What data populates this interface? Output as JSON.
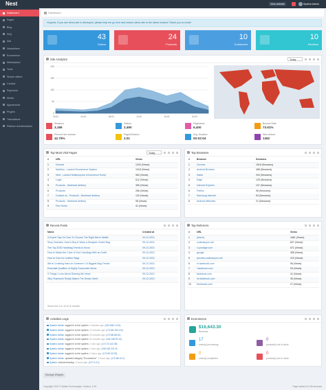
{
  "header": {
    "logo": "Nest",
    "view_website": "View website",
    "user": "System Admin"
  },
  "sidebar": {
    "items": [
      "Dashboard",
      "Pages",
      "Blog",
      "FAQ",
      "Ads",
      "Newsletters",
      "Ecommerce",
      "Marketplace",
      "Tools",
      "Simple sliders",
      "Contact",
      "Payments",
      "Media",
      "Appearance",
      "Plugins",
      "Translations",
      "Platform Administration"
    ],
    "active": 0,
    "color": "#2f3a48",
    "active_color": "#e7505a"
  },
  "breadcrumb": "Dashboard",
  "alert": {
    "text_before": "Hi guest, If you see demo site is destroyed, please help me ",
    "link": "go here",
    "text_after": " and restore demo site to the latest revision! Thank you so much!"
  },
  "stats": [
    {
      "value": 43,
      "label": "Orders",
      "color": "#3598dc"
    },
    {
      "value": 24,
      "label": "Products",
      "color": "#e7505a"
    },
    {
      "value": 10,
      "label": "Customers",
      "color": "#4b9fe1"
    },
    {
      "value": 10,
      "label": "Reviews",
      "color": "#32c5d2"
    }
  ],
  "analytics": {
    "title": "Site Analytics",
    "period": "Today",
    "chart": {
      "type": "area",
      "x": [
        "00:00",
        "02:00",
        "04:00",
        "06:00",
        "08:00",
        "10:00",
        "12:00",
        "14:00",
        "16:00",
        "18:00",
        "20:00",
        "22:00"
      ],
      "series": [
        {
          "name": "Pageviews",
          "color": "#7fb2d9",
          "values": [
            20,
            18,
            15,
            22,
            45,
            100,
            110,
            95,
            75,
            90,
            55,
            30
          ]
        },
        {
          "name": "Visitors",
          "color": "#3d6e9c",
          "values": [
            10,
            8,
            6,
            10,
            25,
            60,
            70,
            58,
            40,
            55,
            28,
            14
          ]
        }
      ],
      "ylim": [
        0,
        200
      ],
      "yticks": [
        0,
        50,
        100,
        150,
        200
      ],
      "grid": true
    },
    "metrics": [
      {
        "label": "Sessions",
        "value": "3,186",
        "color": "#e7505a"
      },
      {
        "label": "Visitors",
        "value": "2,490",
        "color": "#3598dc"
      },
      {
        "label": "Pageviews",
        "value": "6,400",
        "color": "#e35ba5"
      },
      {
        "label": "Bounce Rate",
        "value": "73.61%",
        "color": "#f39c12"
      },
      {
        "label": "Percent new session",
        "value": "42.79%",
        "color": "#e7505a"
      },
      {
        "label": "Pages/Session",
        "value": "2.01",
        "color": "#f1c40f"
      },
      {
        "label": "Avg. Duration",
        "value": "00:02:04",
        "color": "#3598dc"
      },
      {
        "label": "New visitors",
        "value": "1362",
        "color": "#8e44ad"
      }
    ]
  },
  "top_pages": {
    "title": "Top Most Visit Pages",
    "period": "Today",
    "columns": [
      "#",
      "URL",
      "Views"
    ],
    "rows": [
      [
        1,
        "Homest",
        "1200 (Views)"
      ],
      [
        2,
        "MartXuy - Laravel Ecommerce System",
        "1018 (Views)"
      ],
      [
        3,
        "Nest - Laravel Multipurpose eCommerce Script",
        "984 (Views)"
      ],
      [
        4,
        "Login",
        "612 (Views)"
      ],
      [
        5,
        "Products - Nestmart delivery",
        "355 (Views)"
      ],
      [
        6,
        "Products",
        "286 (Views)"
      ],
      [
        7,
        "Contact us - Products - Nestmart delivery",
        "120 (Views)"
      ],
      [
        8,
        "Products - Nestmart delivery",
        "98 (Views)"
      ],
      [
        9,
        "Flex Home",
        "41 (Views)"
      ]
    ]
  },
  "top_browsers": {
    "title": "Top Browsers",
    "columns": [
      "#",
      "Browser",
      "Sessions"
    ],
    "rows": [
      [
        1,
        "Chrome",
        "1518 (Sessions)"
      ],
      [
        2,
        "Android Browser",
        "458 (Sessions)"
      ],
      [
        3,
        "Safari",
        "294 (Sessions)"
      ],
      [
        4,
        "Edge",
        "125 (Sessions)"
      ],
      [
        5,
        "Internet Explorer",
        "107 (Sessions)"
      ],
      [
        6,
        "Firefox",
        "98 (Sessions)"
      ],
      [
        7,
        "Samsung Internet",
        "63 (Sessions)"
      ],
      [
        8,
        "Android Webview",
        "21 (Sessions)"
      ]
    ]
  },
  "recent_posts": {
    "title": "Recent Posts",
    "columns": [
      "Name",
      "Created at"
    ],
    "rows": [
      [
        "4 Expert Tips On How To Choose The Right Men's Wallet",
        "09-12-2021"
      ],
      [
        "Sexy Clutches: How to Buy & Wear a Designer Clutch Bag",
        "09-12-2021"
      ],
      [
        "The Top 2020 Handbag Trends to Know",
        "09-12-2021"
      ],
      [
        "How to Match the Color of Your Handbag With an Outfit",
        "09-12-2021"
      ],
      [
        "How to Care for Leather Bags",
        "09-12-2021"
      ],
      [
        "We're Crushing Hard on Summer's 10 Biggest Bag Trends",
        "09-12-2021"
      ],
      [
        "Essential Qualities of Highly Successful Music",
        "09-12-2021"
      ],
      [
        "9 Things I Love About Shaving My Head",
        "09-12-2021"
      ],
      [
        "Why Teamwork Really Makes The Dream Work",
        "09-12-2021"
      ]
    ],
    "footer": "Show from 1 to 10 of 11 records"
  },
  "top_referrers": {
    "title": "Top Referrers",
    "columns": [
      "#",
      "URL",
      "Views"
    ],
    "rows": [
      [
        1,
        "(direct)",
        "1681 (Views)"
      ],
      [
        2,
        "codecanyon.net",
        "827 (Views)"
      ],
      [
        3,
        "n-postage.com",
        "671 (Views)"
      ],
      [
        4,
        "google",
        "355 (Views)"
      ],
      [
        5,
        "preview.codecanyon.net",
        "319 (Views)"
      ],
      [
        6,
        "m.facebook.com",
        "96 (Views)"
      ],
      [
        7,
        "l.facebook.com",
        "53 (Views)"
      ],
      [
        8,
        "facebook.com",
        "41 (Views)"
      ],
      [
        9,
        "lm.facebook.com",
        "35 (Views)"
      ],
      [
        10,
        "freelancer.com",
        "27 (Views)"
      ]
    ]
  },
  "activities": {
    "title": "Activities Logs",
    "rows": [
      {
        "user": "System Admin",
        "action": "logged in to the system",
        "time": "3 minutes ago",
        "ip": "(192.168.1.101)"
      },
      {
        "user": "System Admin",
        "action": "logged in to the system",
        "time": "12 minutes ago",
        "ip": "(172.68.192.110)"
      },
      {
        "user": "System Admin",
        "action": "logged in to the system",
        "time": "25 minutes ago",
        "ip": "(172.68.88.51)"
      },
      {
        "user": "System Admin",
        "action": "logged in to the system",
        "time": "41 minutes ago",
        "ip": "(162.158.90.12)"
      },
      {
        "user": "System Admin",
        "action": "logged in to the system",
        "time": "1 hour ago",
        "ip": "(172.70.142.35)"
      },
      {
        "user": "System Admin",
        "action": "logged in to the system",
        "time": "1 hour ago",
        "ip": "(108.162.241.9)"
      },
      {
        "user": "System Admin",
        "action": "logged in to the system",
        "time": "2 hours ago",
        "ip": "(172.69.33.76)"
      },
      {
        "user": "System Admin",
        "action": "updated category \"Ecommerce\"",
        "time": "3 hours ago",
        "ip": "(172.68.10.2)"
      },
      {
        "user": "System",
        "action": "restored backup",
        "time": "4 hours ago",
        "ip": "(127.0.0.1)"
      }
    ]
  },
  "ecommerce": {
    "title": "Ecommerce",
    "revenue": "$16,643.30",
    "revenue_label": "Revenue",
    "items": [
      {
        "value": 17,
        "label": "order(s) processing",
        "color": "#3598dc"
      },
      {
        "value": 0,
        "label": "product(s) out of stock",
        "color": "#8e5ea2"
      },
      {
        "value": 0,
        "label": "order(s) completed",
        "color": "#f39c12"
      },
      {
        "value": 0,
        "label": "product(s) low in stock",
        "color": "#e7505a"
      }
    ]
  },
  "manage_widgets": "Manage Widgets",
  "footer": {
    "copyright": "Copyright 2021 © Botble Technologies. Version: 5.15",
    "load_time": "Page loaded in 0.56 seconds"
  }
}
